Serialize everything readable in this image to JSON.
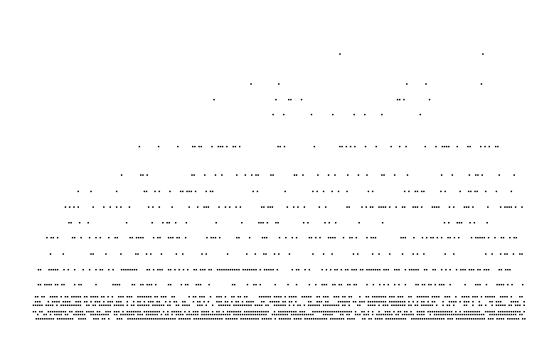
{
  "colors": {
    "background": "#ffffff",
    "dot": "#000000"
  },
  "pattern": {
    "description_hidden": "",
    "density_profile": "sparse-top-dense-bottom",
    "row_fill_levels": [
      0.01,
      0.05,
      0.07,
      0.08,
      0.08,
      0.22,
      0.14,
      0.23,
      0.34,
      0.16,
      0.43,
      0.21,
      0.55,
      0.32,
      0.65,
      0.58,
      0.72,
      0.78,
      0.83,
      0.85
    ]
  }
}
